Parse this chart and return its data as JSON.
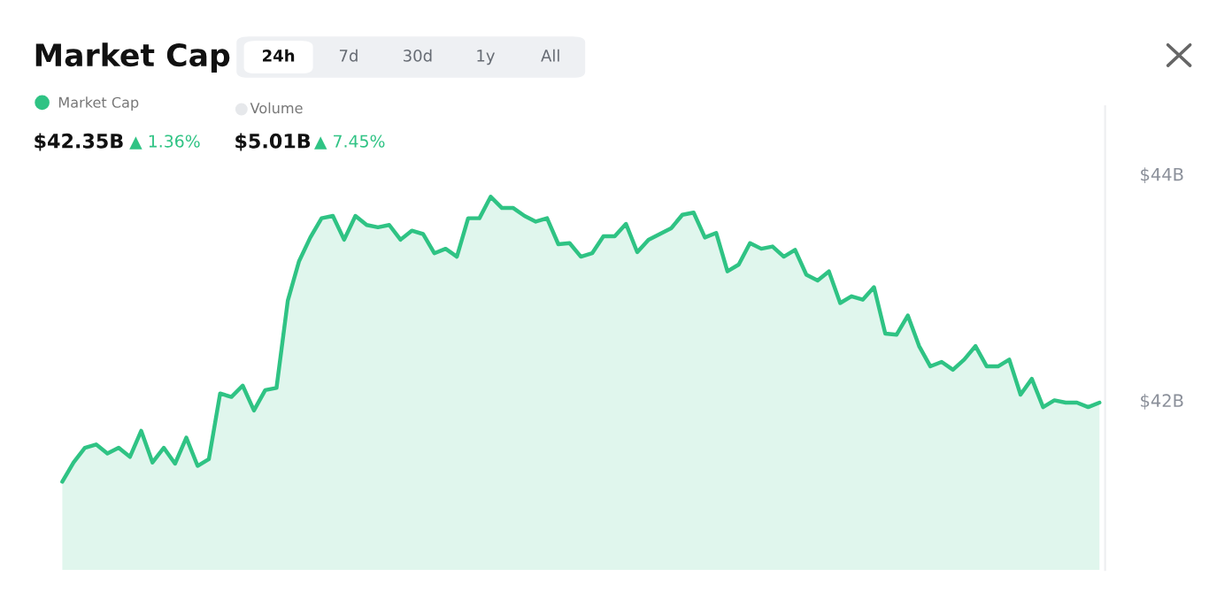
{
  "chart_data": {
    "type": "area",
    "title": "Market Cap",
    "categories": [
      null,
      null,
      null,
      null,
      null,
      null,
      null,
      null,
      null,
      null,
      null,
      null,
      null,
      null,
      null,
      null,
      null,
      null,
      null,
      null,
      null,
      null,
      null,
      null,
      null,
      null,
      null,
      null,
      null,
      null,
      null,
      null,
      null,
      null,
      null,
      null,
      null,
      null,
      null,
      null,
      null,
      null,
      null,
      null,
      null,
      null,
      null,
      null,
      null,
      null,
      null,
      null,
      null,
      null,
      null,
      null,
      null,
      null,
      null,
      null,
      null,
      null,
      null,
      null,
      null,
      null,
      null,
      null,
      null,
      null,
      null,
      null,
      null,
      null,
      null,
      null,
      null,
      null,
      null,
      null,
      null,
      null,
      null,
      null,
      null,
      null,
      null,
      null,
      null,
      null,
      null,
      null,
      null
    ],
    "series": [
      {
        "name": "Market Cap",
        "color": "#2fc384",
        "values": [
          41.28,
          41.45,
          41.58,
          41.61,
          41.53,
          41.58,
          41.5,
          41.73,
          41.45,
          41.58,
          41.44,
          41.67,
          41.42,
          41.48,
          42.06,
          42.03,
          42.13,
          41.91,
          42.09,
          42.11,
          42.88,
          43.23,
          43.44,
          43.61,
          43.63,
          43.42,
          43.63,
          43.55,
          43.53,
          43.55,
          43.42,
          43.5,
          43.47,
          43.3,
          43.34,
          43.27,
          43.61,
          43.61,
          43.8,
          43.7,
          43.7,
          43.63,
          43.58,
          43.61,
          43.38,
          43.39,
          43.27,
          43.3,
          43.45,
          43.45,
          43.56,
          43.31,
          43.42,
          43.47,
          43.52,
          43.64,
          43.66,
          43.44,
          43.48,
          43.14,
          43.2,
          43.39,
          43.34,
          43.36,
          43.27,
          43.33,
          43.11,
          43.06,
          43.14,
          42.86,
          42.92,
          42.89,
          43.0,
          42.59,
          42.58,
          42.75,
          42.48,
          42.3,
          42.34,
          42.27,
          42.36,
          42.48,
          42.3,
          42.3,
          42.36,
          42.05,
          42.19,
          41.94,
          42.0,
          41.98,
          41.98,
          41.94,
          41.98
        ]
      }
    ],
    "ylim": [
      40.5,
      44.6
    ],
    "yticks": [
      {
        "value": 42,
        "label": "$42B"
      },
      {
        "value": 44,
        "label": "$44B"
      }
    ],
    "grid": false,
    "legend": "top left",
    "annotations": [
      "24h",
      "7d",
      "30d",
      "1y",
      "All",
      "$42.35B",
      "▲ 1.36%",
      "Volume",
      "$5.01B",
      "▲ 7.45%"
    ]
  }
}
